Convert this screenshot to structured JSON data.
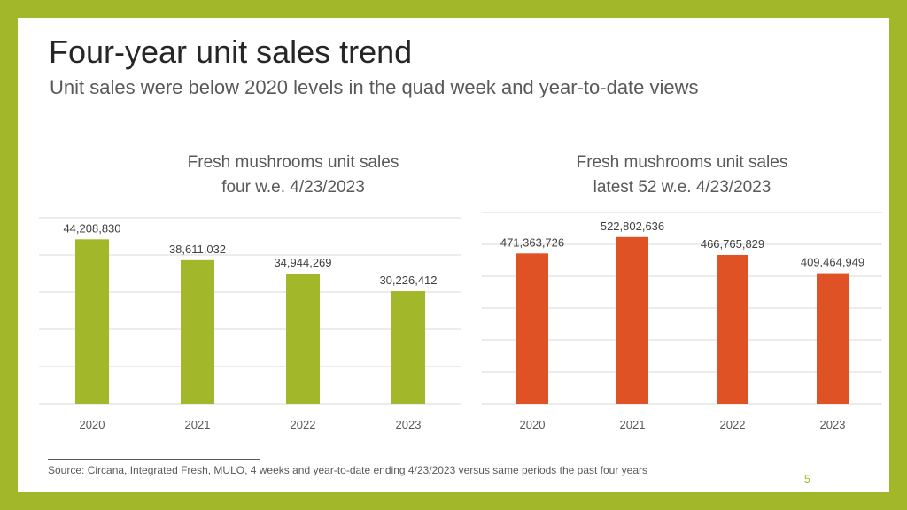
{
  "slide": {
    "title": "Four-year unit sales trend",
    "subtitle": "Unit sales were below 2020 levels in the quad week and year-to-date views",
    "source": "Source: Circana, Integrated Fresh, MULO, 4 weeks and year-to-date ending 4/23/2023 versus same periods the past four years",
    "page_number": "5",
    "colors": {
      "frame": "#a2b82a",
      "green_bar": "#a2b82a",
      "orange_bar": "#df5226"
    }
  },
  "chart_data": [
    {
      "type": "bar",
      "title_line1": "Fresh mushrooms unit sales",
      "title_line2": "four w.e. 4/23/2023",
      "categories": [
        "2020",
        "2021",
        "2022",
        "2023"
      ],
      "values": [
        44208830,
        38611032,
        34944269,
        30226412
      ],
      "value_labels": [
        "44,208,830",
        "38,611,032",
        "34,944,269",
        "30,226,412"
      ],
      "ylim": [
        0,
        50000000
      ],
      "grid": true,
      "bar_color": "#a2b82a"
    },
    {
      "type": "bar",
      "title_line1": "Fresh mushrooms unit sales",
      "title_line2": "latest 52 w.e. 4/23/2023",
      "categories": [
        "2020",
        "2021",
        "2022",
        "2023"
      ],
      "values": [
        471363726,
        522802636,
        466765829,
        409464949
      ],
      "value_labels": [
        "471,363,726",
        "522,802,636",
        "466,765,829",
        "409,464,949"
      ],
      "ylim": [
        0,
        600000000
      ],
      "grid": true,
      "bar_color": "#df5226"
    }
  ]
}
